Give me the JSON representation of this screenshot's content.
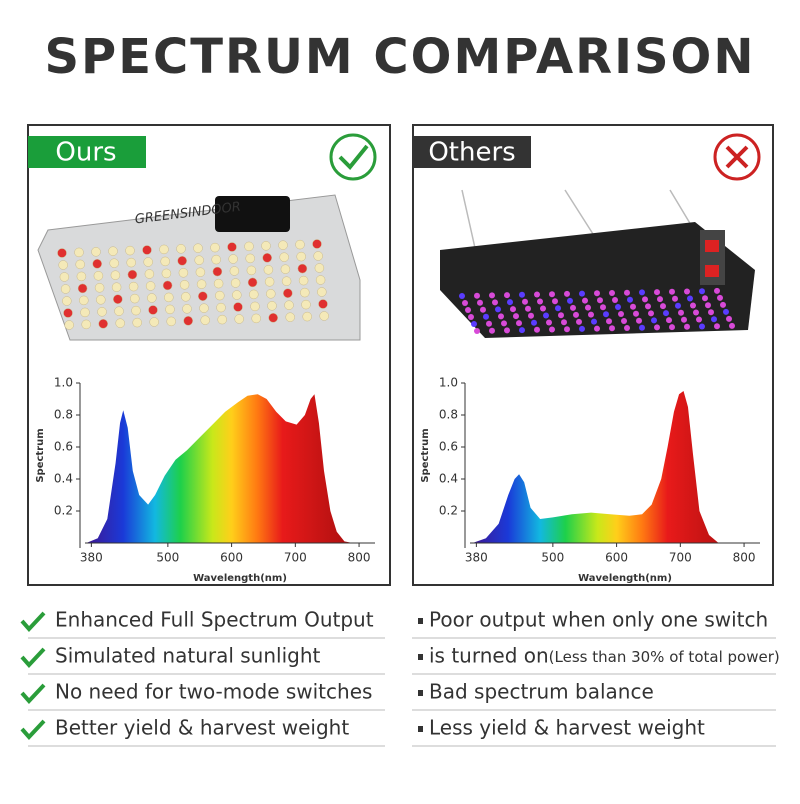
{
  "title": "SPECTRUM COMPARISON",
  "panels": [
    {
      "label": "Ours",
      "brand": "GREENSINDOOR"
    },
    {
      "label": "Others"
    }
  ],
  "chart_data": [
    {
      "type": "area",
      "xlabel": "Wavelength(nm)",
      "ylabel": "Spectrum",
      "x": [
        372,
        390,
        405,
        418,
        425,
        430,
        437,
        445,
        455,
        469,
        480,
        495,
        512,
        530,
        550,
        570,
        590,
        610,
        625,
        641,
        655,
        670,
        685,
        702,
        715,
        724,
        730,
        737,
        745,
        755,
        765,
        777,
        790
      ],
      "values": [
        0,
        0.03,
        0.15,
        0.5,
        0.75,
        0.83,
        0.72,
        0.45,
        0.3,
        0.24,
        0.3,
        0.42,
        0.52,
        0.58,
        0.66,
        0.74,
        0.82,
        0.88,
        0.92,
        0.93,
        0.9,
        0.82,
        0.76,
        0.74,
        0.8,
        0.9,
        0.93,
        0.75,
        0.45,
        0.2,
        0.07,
        0.01,
        0
      ],
      "xlim": [
        370,
        825
      ],
      "ylim": [
        0,
        1
      ],
      "xticks": [
        380,
        500,
        600,
        700,
        800
      ],
      "yticks": [
        0.2,
        0.4,
        0.6,
        {
          "value": 1,
          "label": "1.0"
        },
        0.8
      ]
    },
    {
      "type": "area",
      "xlabel": "Wavelength(nm)",
      "ylabel": "Spectrum",
      "x": [
        374,
        395,
        415,
        430,
        440,
        447,
        455,
        465,
        480,
        500,
        530,
        560,
        590,
        620,
        640,
        655,
        670,
        680,
        690,
        698,
        705,
        712,
        720,
        730,
        745,
        760
      ],
      "values": [
        0,
        0.03,
        0.12,
        0.3,
        0.4,
        0.43,
        0.38,
        0.22,
        0.15,
        0.16,
        0.18,
        0.19,
        0.18,
        0.17,
        0.18,
        0.24,
        0.4,
        0.6,
        0.82,
        0.93,
        0.95,
        0.85,
        0.55,
        0.2,
        0.05,
        0
      ],
      "xlim": [
        370,
        825
      ],
      "ylim": [
        0,
        1
      ],
      "xticks": [
        380,
        500,
        600,
        700,
        800
      ],
      "yticks": [
        0.2,
        0.4,
        0.6,
        0.8,
        {
          "value": 1,
          "label": "1.0"
        }
      ]
    }
  ],
  "lists": [
    {
      "items": [
        {
          "text": "Enhanced Full Spectrum Output"
        },
        {
          "text": "Simulated natural sunlight"
        },
        {
          "text": "No need for two-mode switches"
        },
        {
          "text": "Better yield & harvest weight"
        }
      ]
    },
    {
      "items": [
        {
          "text": "Poor output when only one switch"
        },
        {
          "text": "is turned on",
          "note": "(Less than 30% of total power)"
        },
        {
          "text": "Bad spectrum balance"
        },
        {
          "text": "Less yield & harvest weight"
        }
      ]
    }
  ]
}
